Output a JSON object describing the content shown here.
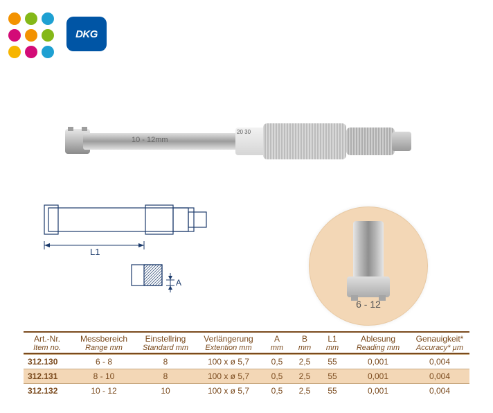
{
  "logo_dot_colors": [
    "#f39200",
    "#84b818",
    "#1ea0d2",
    "#d30b77",
    "#f39200",
    "#84b818",
    "#f7b500",
    "#d30b77",
    "#1ea0d2"
  ],
  "dkg": {
    "label": "DKG",
    "bg": "#0055a5"
  },
  "photo": {
    "shaft_label": "10 - 12mm",
    "scale_marks": "20\n30"
  },
  "drawing": {
    "L1_label": "L1",
    "A_label": "A"
  },
  "detail_circle": {
    "caption": "6 - 12",
    "bg": "#f3d7b6"
  },
  "table": {
    "border_color": "#7a4a1d",
    "highlight_bg": "#f3d7b6",
    "columns": [
      {
        "de": "Art.-Nr.",
        "en": "Item no."
      },
      {
        "de": "Messbereich",
        "en": "Range mm"
      },
      {
        "de": "Einstellring",
        "en": "Standard mm"
      },
      {
        "de": "Verlängerung",
        "en": "Extention mm"
      },
      {
        "de": "A",
        "en": "mm"
      },
      {
        "de": "B",
        "en": "mm"
      },
      {
        "de": "L1",
        "en": "mm"
      },
      {
        "de": "Ablesung",
        "en": "Reading mm"
      },
      {
        "de": "Genauigkeit*",
        "en": "Accuracy* µm"
      }
    ],
    "rows": [
      {
        "item": "312.130",
        "range": "6  -   8",
        "standard": "8",
        "ext": "100  x  ø 5,7",
        "A": "0,5",
        "B": "2,5",
        "L1": "55",
        "reading": "0,001",
        "accuracy": "0,004",
        "highlight": false
      },
      {
        "item": "312.131",
        "range": "8  -  10",
        "standard": "8",
        "ext": "100  x  ø 5,7",
        "A": "0,5",
        "B": "2,5",
        "L1": "55",
        "reading": "0,001",
        "accuracy": "0,004",
        "highlight": true
      },
      {
        "item": "312.132",
        "range": "10  -  12",
        "standard": "10",
        "ext": "100  x  ø 5,7",
        "A": "0,5",
        "B": "2,5",
        "L1": "55",
        "reading": "0,001",
        "accuracy": "0,004",
        "highlight": false
      }
    ]
  }
}
